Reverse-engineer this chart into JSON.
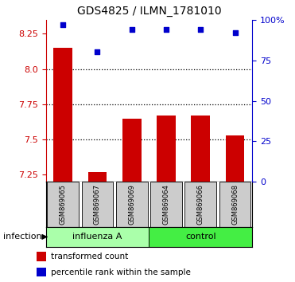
{
  "title": "GDS4825 / ILMN_1781010",
  "samples": [
    "GSM869065",
    "GSM869067",
    "GSM869069",
    "GSM869064",
    "GSM869066",
    "GSM869068"
  ],
  "red_values": [
    8.15,
    7.27,
    7.65,
    7.67,
    7.67,
    7.53
  ],
  "blue_pct": [
    97,
    80,
    94,
    94,
    94,
    92
  ],
  "ylim": [
    7.2,
    8.35
  ],
  "yticks": [
    7.25,
    7.5,
    7.75,
    8.0,
    8.25
  ],
  "y2ticks": [
    0,
    25,
    50,
    75,
    100
  ],
  "y2labels": [
    "0",
    "25",
    "50",
    "75",
    "100%"
  ],
  "bar_color": "#cc0000",
  "dot_color": "#0000cc",
  "group_influenza_label": "influenza A",
  "group_control_label": "control",
  "group_color_influenza": "#aaffaa",
  "group_color_control": "#44ee44",
  "factor_label": "infection",
  "legend_red": "transformed count",
  "legend_blue": "percentile rank within the sample",
  "tick_color_left": "#cc0000",
  "tick_color_right": "#0000cc",
  "bar_bottom": 7.2,
  "gray_box_color": "#cccccc"
}
